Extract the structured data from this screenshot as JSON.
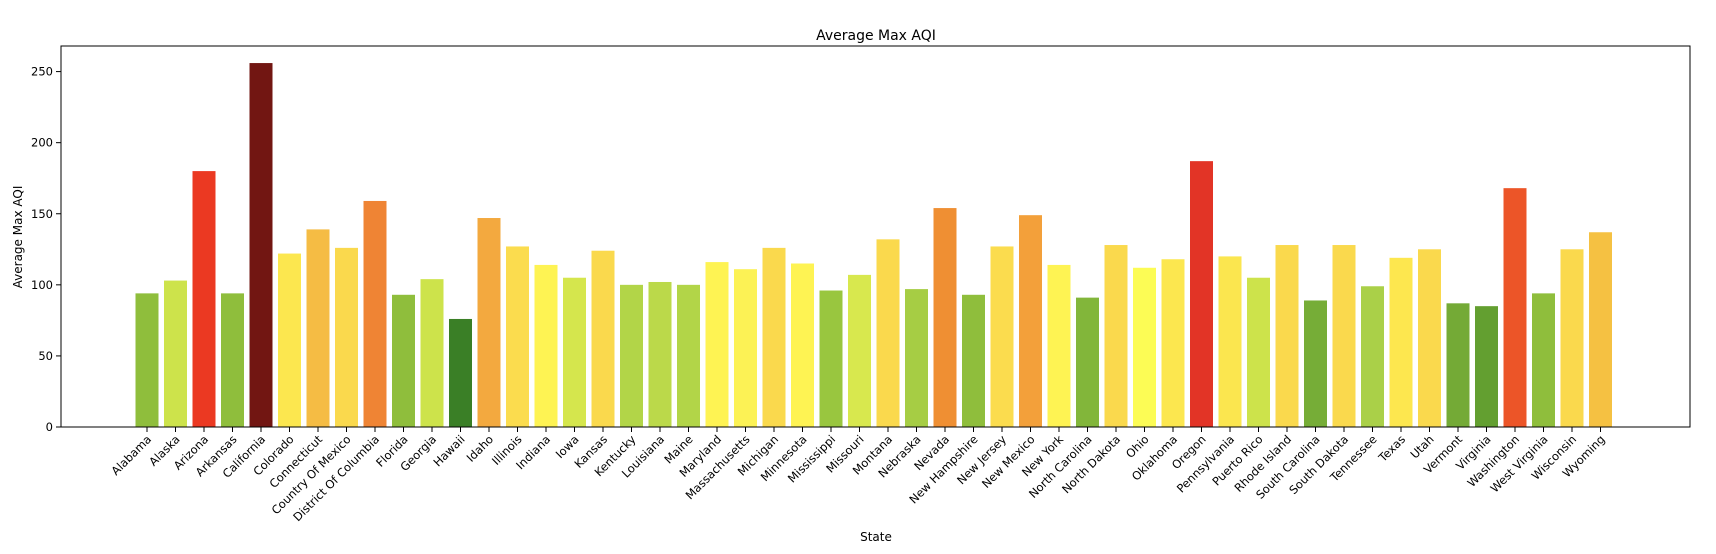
{
  "chart_data": {
    "type": "bar",
    "title": "Average Max AQI",
    "xlabel": "State",
    "ylabel": "Average Max AQI",
    "ylim": [
      0,
      268
    ],
    "yticks": [
      0,
      50,
      100,
      150,
      200,
      250
    ],
    "grid": false,
    "legend": "none",
    "categories": [
      "Alabama",
      "Alaska",
      "Arizona",
      "Arkansas",
      "California",
      "Colorado",
      "Connecticut",
      "Country Of Mexico",
      "District Of Columbia",
      "Florida",
      "Georgia",
      "Hawaii",
      "Idaho",
      "Illinois",
      "Indiana",
      "Iowa",
      "Kansas",
      "Kentucky",
      "Louisiana",
      "Maine",
      "Maryland",
      "Massachusetts",
      "Michigan",
      "Minnesota",
      "Mississippi",
      "Missouri",
      "Montana",
      "Nebraska",
      "Nevada",
      "New Hampshire",
      "New Jersey",
      "New Mexico",
      "New York",
      "North Carolina",
      "North Dakota",
      "Ohio",
      "Oklahoma",
      "Oregon",
      "Pennsylvania",
      "Puerto Rico",
      "Rhode Island",
      "South Carolina",
      "South Dakota",
      "Tennessee",
      "Texas",
      "Utah",
      "Vermont",
      "Virginia",
      "Washington",
      "West Virginia",
      "Wisconsin",
      "Wyoming"
    ],
    "values": [
      94,
      103,
      180,
      94,
      256,
      122,
      139,
      126,
      159,
      93,
      104,
      76,
      147,
      127,
      114,
      105,
      124,
      100,
      102,
      100,
      116,
      111,
      126,
      115,
      96,
      107,
      132,
      97,
      154,
      93,
      127,
      149,
      114,
      91,
      128,
      112,
      118,
      187,
      120,
      105,
      128,
      89,
      128,
      99,
      119,
      125,
      87,
      85,
      168,
      94,
      125,
      137
    ],
    "colors": [
      "#8fbe3c",
      "#cde34b",
      "#eb3922",
      "#8fbe3c",
      "#721612",
      "#fce74f",
      "#f5bc44",
      "#fad94d",
      "#ef8434",
      "#8fbe3c",
      "#cde34b",
      "#3a7f26",
      "#f3a93f",
      "#fbdc4e",
      "#fef353",
      "#d5e64d",
      "#fad94d",
      "#b2d548",
      "#bbd94a",
      "#b2d548",
      "#fef353",
      "#fcf255",
      "#fad94d",
      "#fef353",
      "#99c63f",
      "#d8e84e",
      "#fad94d",
      "#a6cd44",
      "#ef8f33",
      "#8fbe3c",
      "#fbdc4e",
      "#f3a03a",
      "#fef353",
      "#82b63a",
      "#fad94d",
      "#fcfc55",
      "#fce74f",
      "#e23426",
      "#fbe64f",
      "#cde34b",
      "#fad94d",
      "#76ad37",
      "#fad94d",
      "#aad048",
      "#fde74f",
      "#fad94d",
      "#74aa36",
      "#639f30",
      "#ec5528",
      "#8fbe3c",
      "#fad94d",
      "#f5c142"
    ]
  }
}
